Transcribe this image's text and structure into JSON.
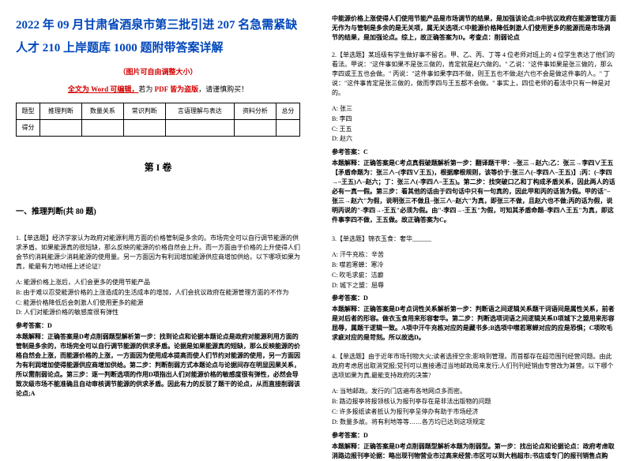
{
  "left": {
    "title": "2022 年 09 月甘肃省酒泉市第三批引进 207 名急需紧缺人才 210 上岸题库 1000 题附带答案详解",
    "subtitle_red": "（图片可自由调整大小）",
    "edit_underline": "全文为 Word 可编辑，",
    "edit_mid": "若为 ",
    "edit_pdf": "PDF 皆为盗版",
    "edit_tail": "，请谨慎购买！",
    "table_headers": [
      "题型",
      "推理判断",
      "数量关系",
      "常识判断",
      "言语理解与表达",
      "资料分析",
      "总分"
    ],
    "table_row_label": "得分",
    "volume": "第 I 卷",
    "section": "一、推理判断(共 80 题)",
    "q1_text": "1.【单选题】经济学家认为政府对能源利用方面的价格管制是多余的。市场完全可以自行调节能源的供求矛盾。如果能源真的很短缺，那么反映的能源的价格自然会上升。而一方面由于价格的上升使得人们会节约消耗能源少消耗能源的使用量。另一方面因为有利润增加能源供应商增加供给。以下哪项如果为真，能最有力地动摇上述论证?",
    "q1_opts": [
      "A: 能源价格上涨后，人们会更多的使用节能产品",
      "B: 由于难以忍受能源价格的上涨造成的生活成本的增加，人们会抗议政府在能源管理方面的不作为",
      "C: 能源价格降低后会刺激人们使用更多的能源",
      "D: 人们对能源价格的敏感度很有弹性"
    ],
    "q1_ans_label": "参考答案：D",
    "q1_exp": "本题解释：正确答案是D考点削弱题型解析第一步：找到论点和论据本题论点是政府对能源利用方面的管制是多余的，市场完全可以自行调节能源的供求矛盾。论据是如果能源真的短缺，那么反映能源的价格自然会上涨，而能源价格的上涨，一方面因为使用成本提高而使人们节约对能源的使用，另一方面因为有利润增加使得能源供应商增加供给。第二步：判断削弱方式本题论点与论据间存在明显因果关系，所以需削弱论点。第三步：逐一判断选项的作用D项指出人们对能源价格的敏感度很有弹性，必然会导致次级市场不能准确且自动审核调节能源的供求矛盾。因此有力的反驳了题干的论点，从而直接削弱该论点;A"
  },
  "right": {
    "top_cont": "中能源价格上涨使得人们使用节能产品是市场调节的结果，是加强该论点;B中抗议政府在能源管理方面无作为与管制是多余的是无关项，属无关选项;C中能源价格降低刺激人们使用更多的能源而是市场调节的结果，是加强论点。综上，故正确答案为D。考查点：削弱论点",
    "q2_text": "2.【单选题】某班级有学生做好事不留名。甲、乙、丙、丁等 4 位老师对班上的 4 位学生表达了他们的看法。甲说：\"这件事如果不是张三做的，肯定就是赵六做的。\" 乙说：\"这件事如果是张三做的，那么李四或王五也会做。\" 丙说：\"这件事如果李四不做，则王五也不做;赵六也不会是做这件事的人。\" 丁说：\"这件事肯定是张三做的，做而李四与王五都不会做。\" 事实上，四位老师的看法中只有一种是对的。",
    "q2_opts": [
      "A: 张三",
      "B: 李四",
      "C: 王五",
      "D: 赵六"
    ],
    "q2_ans_label": "参考答案：C",
    "q2_exp": "本题解释：正确答案是C考点真假破题解析第一步：翻译题干甲：–张三→赵六;乙：张三→李四∨王五【矛盾命题为：张三∧–(李四∨王五)，根据摩根规则，该等价于:张三∧(–李四∧–王五)】;丙：(–李四→–王五)∧–赵六；丁：张三∧(-李四∧–王五)。第二步：找突破口乙和丁构成矛盾关系，因此两人的话必有一真一假。第三步：看其他的话由于四句话中只有一句真的，因此甲和丙的话皆为假。甲的话\"–张三→赵六\"为假，说明张三不做且–张三∧–赵六\"为真，即张三不做，且赵六也不做;丙的话为假，说明丙说的\"-李四→-王五\"必须为假。由\"-李四→-王五\"为假，可知其矛盾命题–李四∧王五\"为真，即这件事李四不做，王五做。故正确答案为C。",
    "q3_text": "3.【单选题】锦衣玉食：奢华______",
    "q3_opts": [
      "A: 汗牛充栋：辛苦",
      "B: 噤若寒蝉：寒冷",
      "C: 吹毛求疵：洁癖",
      "D: 城下之盟：屈辱"
    ],
    "q3_ans_label": "参考答案：D",
    "q3_exp": "本题解释：正确答案是D考点词性关系解析第一步：判断语之间逻辑关系题干词语间是属性关系，前者是对后者的形容。做衣玉食用来形容奢华。第二步：判断选项词语之间逻辑关系D项城下之盟用来形容屈辱，属题干逻辑一致。A项中汗牛充栋对应的是藏书多;B选项中噤若寒蝉对应的应是恐惧；C项吹毛求疵对应的是苛刻。所以故选D。",
    "q4_text": "4.【单选题】由于近年市场刊物大火;读者选择空余;影响到管理。而首都存在超范围刊经营问题。由此政府考虑居出取消党报;党刊可以直接通过当地邮政局来发行;人们刊刊经销由专营改为兼营。以下哪个选项如果为真,最能支持政府的决策? ",
    "q4_opts": [
      "A: 当地邮政。发行的门店遍布各地网点多而密。",
      "B: 路边报亭将报领核认为报刊亭存在是非法出版物的问题",
      "C: 许多报纸读者抵认为报刊亭呈停办有助于市场经济",
      "D: 数量多故。将有利地等等……各方均已达到这项规定"
    ],
    "q4_ans_label": "参考答案：D",
    "q4_exp": "本题解释：正确答案是D考点削弱题型解析本题为削弱型。第一步：找出论点和论据论点：政府考虑取消路边报刊亭论据：略出现刊物营业市过高来经营;市区可以到大档超市;书店或专门的报刊销售点购"
  },
  "style": {
    "title_color": "#0047bb",
    "red_color": "#d40000",
    "bg": "#ffffff",
    "font_family": "SimSun"
  }
}
